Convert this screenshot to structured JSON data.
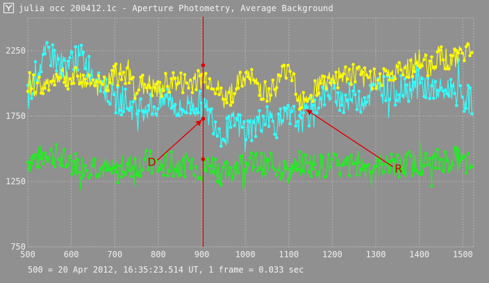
{
  "window": {
    "title": "julia occ 200412.1c - Aperture Photometry, Average Background",
    "icon": "app-logo-icon"
  },
  "footer": {
    "text": "500 = 20 Apr 2012, 16:35:23.514 UT, 1 frame = 0.033 sec"
  },
  "colors": {
    "background": "#909090",
    "yellow": "#ffff00",
    "cyan": "#33ffff",
    "green": "#22ee22",
    "marker": "#dd0000",
    "grid": "#b4b4b4"
  },
  "chart_data": {
    "type": "line",
    "xlim": [
      500,
      1525
    ],
    "ylim": [
      750,
      2500
    ],
    "x_ticks": [
      500,
      600,
      700,
      800,
      900,
      1000,
      1100,
      1200,
      1300,
      1400,
      1500
    ],
    "y_ticks": [
      750,
      1250,
      1750,
      2250
    ],
    "grid": true,
    "series": [
      {
        "color": "#ffff00",
        "x": [
          500,
          525,
          550,
          575,
          600,
          625,
          650,
          675,
          700,
          725,
          750,
          775,
          800,
          825,
          850,
          875,
          900,
          925,
          950,
          975,
          1000,
          1025,
          1050,
          1075,
          1100,
          1125,
          1150,
          1175,
          1200,
          1225,
          1250,
          1275,
          1300,
          1325,
          1350,
          1375,
          1400,
          1425,
          1450,
          1475,
          1500,
          1525
        ],
        "values": [
          2000,
          1980,
          2000,
          2080,
          2030,
          2040,
          2010,
          1960,
          2060,
          2080,
          1970,
          1990,
          1930,
          2020,
          2000,
          2000,
          2040,
          2020,
          1870,
          1950,
          2060,
          2000,
          1920,
          2000,
          2160,
          1880,
          1930,
          2000,
          2040,
          2060,
          2070,
          2030,
          2050,
          2060,
          2080,
          2120,
          2180,
          2130,
          2230,
          2150,
          2260,
          2260
        ]
      },
      {
        "color": "#33ffff",
        "x": [
          500,
          525,
          550,
          575,
          600,
          625,
          650,
          675,
          700,
          725,
          750,
          775,
          800,
          825,
          850,
          875,
          900,
          925,
          950,
          975,
          1000,
          1025,
          1050,
          1075,
          1100,
          1125,
          1150,
          1175,
          1200,
          1225,
          1250,
          1275,
          1300,
          1325,
          1350,
          1375,
          1400,
          1425,
          1450,
          1475,
          1500,
          1525
        ],
        "values": [
          1900,
          2130,
          2240,
          2140,
          2170,
          2200,
          2080,
          1970,
          1870,
          1860,
          1800,
          1830,
          1820,
          1900,
          1780,
          1850,
          1830,
          1730,
          1600,
          1700,
          1640,
          1680,
          1750,
          1680,
          1740,
          1720,
          1780,
          1900,
          1950,
          1880,
          1900,
          1890,
          1940,
          1960,
          1940,
          1970,
          2000,
          1960,
          1930,
          1970,
          1890,
          1860
        ]
      },
      {
        "color": "#22ee22",
        "x": [
          500,
          525,
          550,
          575,
          600,
          625,
          650,
          675,
          700,
          725,
          750,
          775,
          800,
          825,
          850,
          875,
          900,
          925,
          950,
          975,
          1000,
          1025,
          1050,
          1075,
          1100,
          1125,
          1150,
          1175,
          1200,
          1225,
          1250,
          1275,
          1300,
          1325,
          1350,
          1375,
          1400,
          1425,
          1450,
          1475,
          1500,
          1525
        ],
        "values": [
          1400,
          1430,
          1480,
          1420,
          1390,
          1370,
          1380,
          1350,
          1320,
          1360,
          1380,
          1400,
          1360,
          1380,
          1380,
          1390,
          1340,
          1390,
          1300,
          1360,
          1380,
          1400,
          1360,
          1370,
          1310,
          1380,
          1390,
          1360,
          1380,
          1340,
          1400,
          1370,
          1370,
          1380,
          1360,
          1390,
          1400,
          1390,
          1410,
          1420,
          1400,
          1360
        ]
      }
    ],
    "annotations": [
      {
        "label": "D",
        "text_at": [
          785,
          1370
        ],
        "arrow_to": [
          900,
          1720
        ]
      },
      {
        "label": "R",
        "text_at": [
          1352,
          1320
        ],
        "arrow_to": [
          1140,
          1800
        ]
      }
    ],
    "vertical_marker": {
      "x": 903,
      "points_y": [
        2140,
        1730,
        1420
      ]
    }
  }
}
